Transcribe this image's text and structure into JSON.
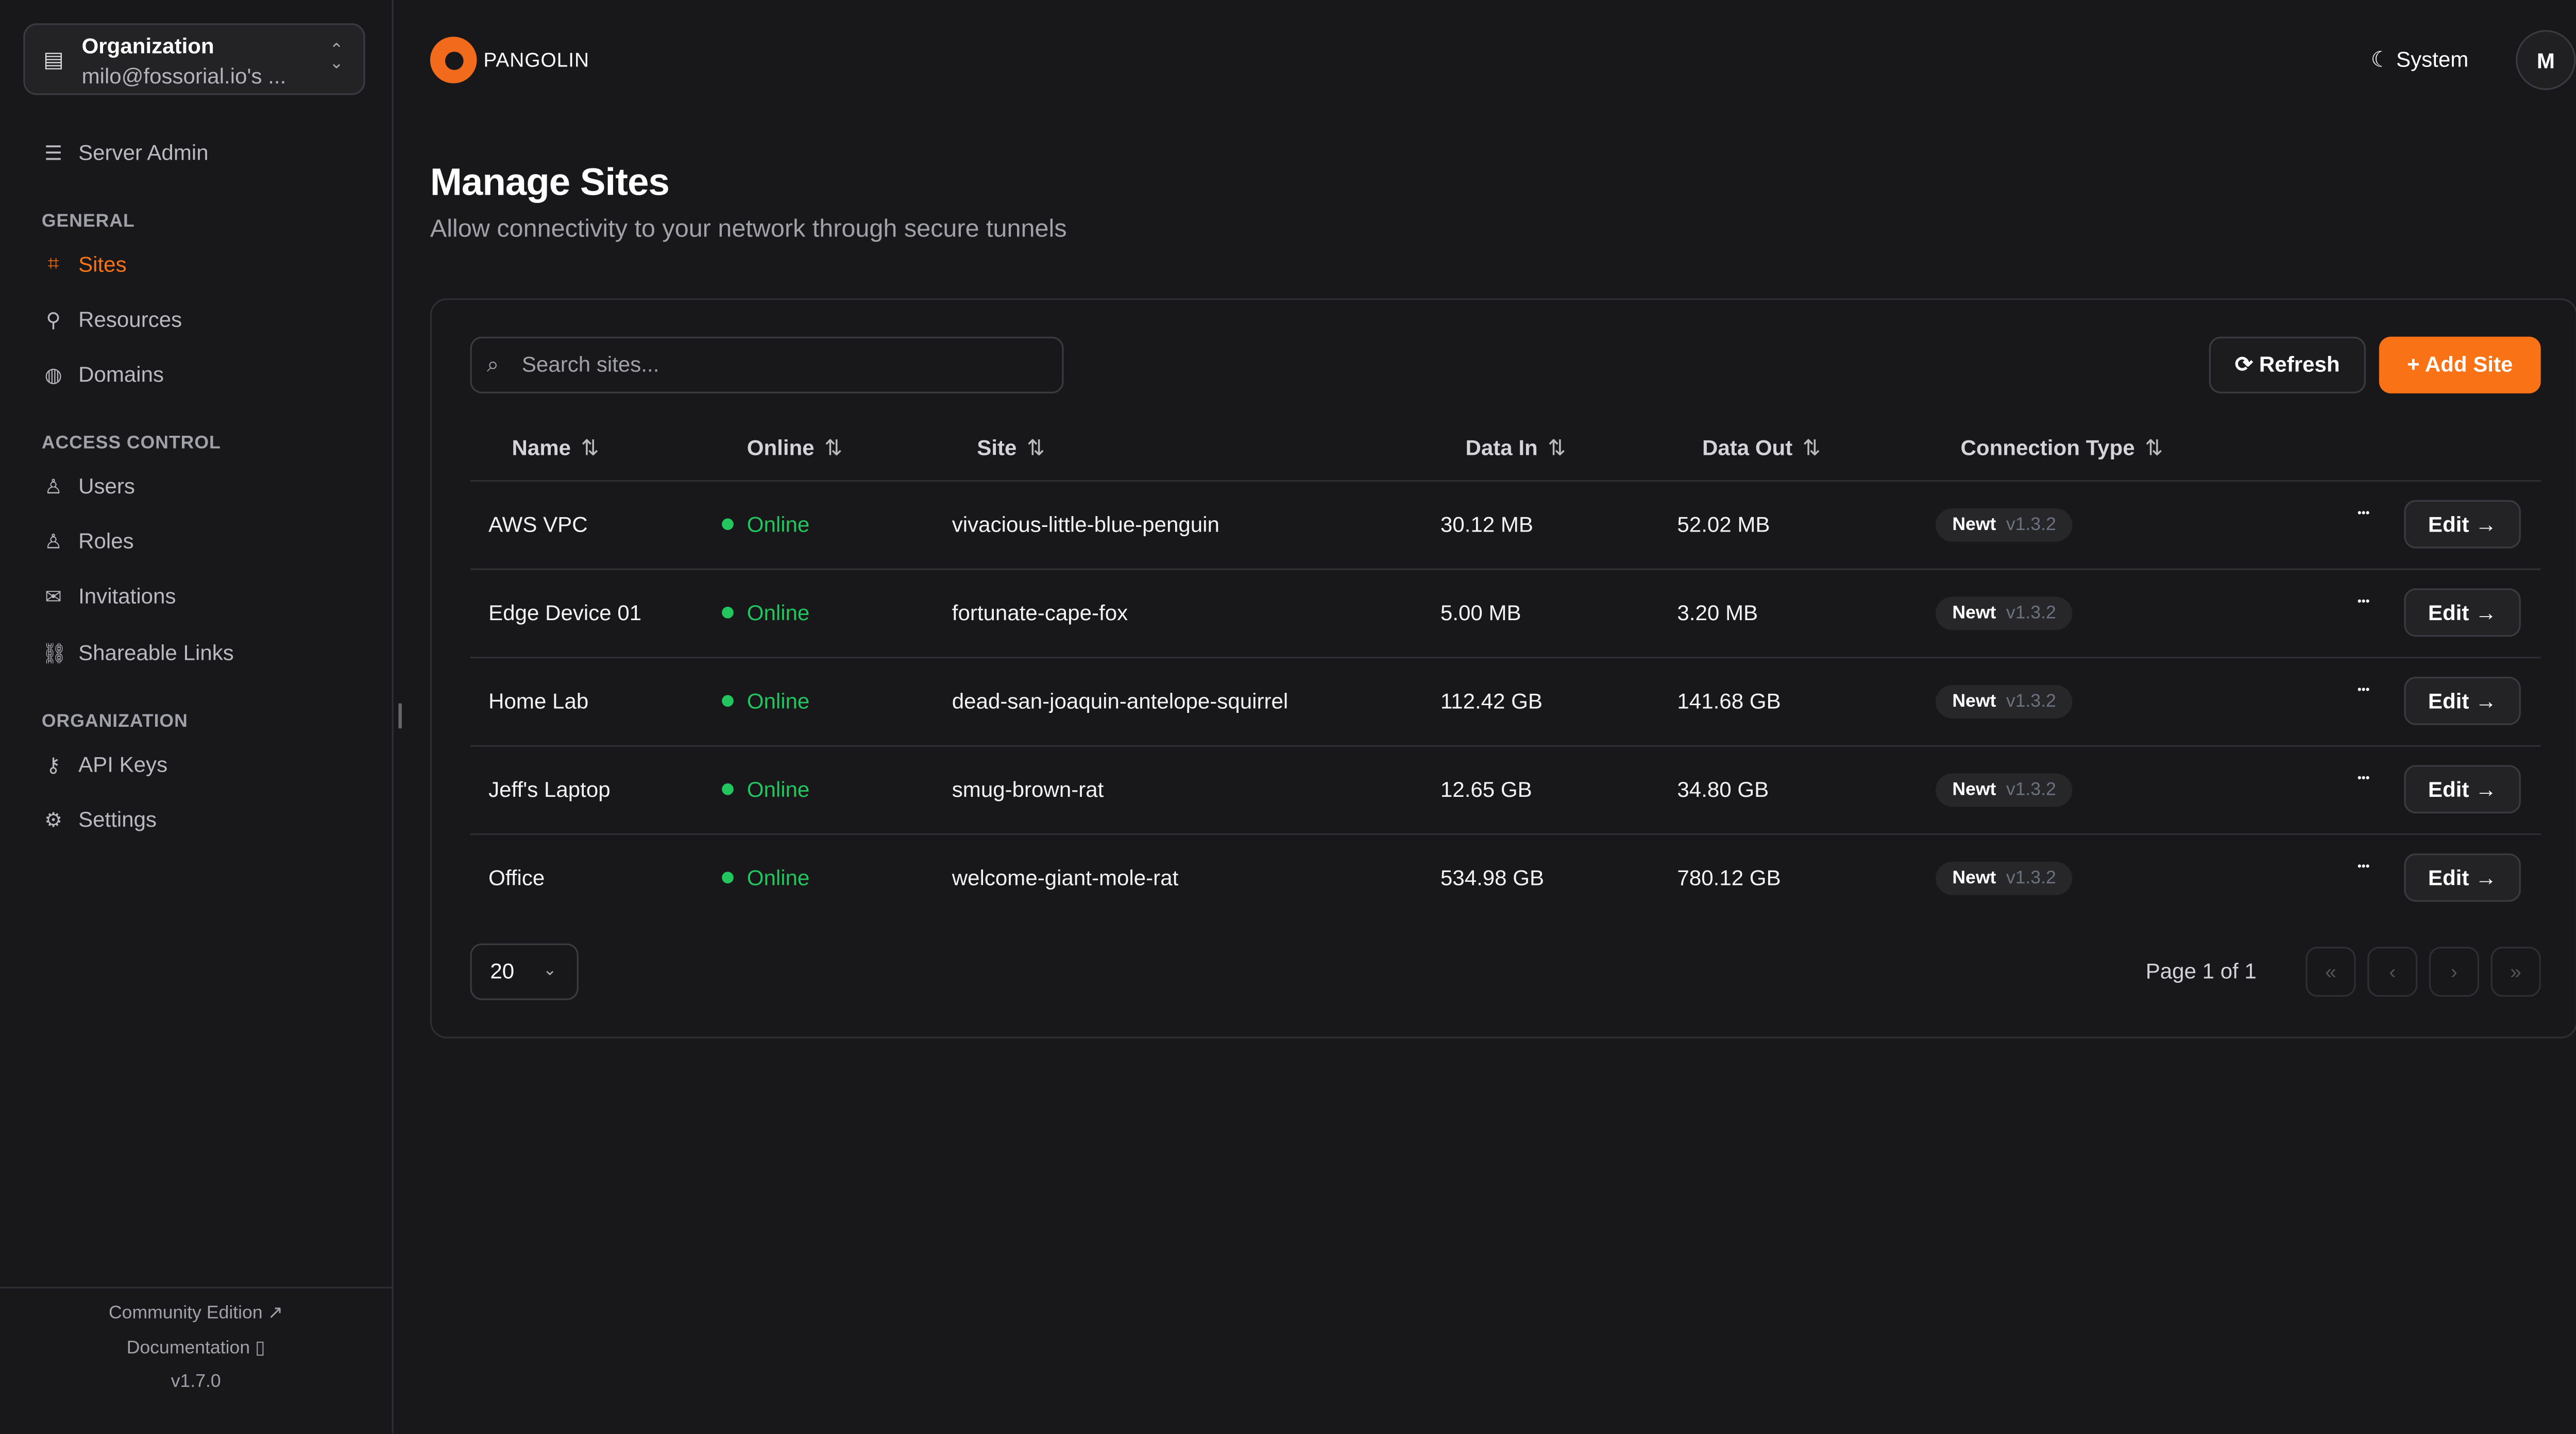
{
  "sidebar": {
    "org_label": "Organization",
    "org_name": "milo@fossorial.io's ...",
    "server_admin": "Server Admin",
    "sections": {
      "general": "GENERAL",
      "access": "ACCESS CONTROL",
      "organization": "ORGANIZATION"
    },
    "items": [
      {
        "label": "Sites",
        "icon": "sites-icon",
        "active": true
      },
      {
        "label": "Resources",
        "icon": "resources-icon"
      },
      {
        "label": "Domains",
        "icon": "globe-icon"
      },
      {
        "label": "Users",
        "icon": "user-icon"
      },
      {
        "label": "Roles",
        "icon": "users-icon"
      },
      {
        "label": "Invitations",
        "icon": "mail-icon"
      },
      {
        "label": "Shareable Links",
        "icon": "link-icon"
      },
      {
        "label": "API Keys",
        "icon": "key-icon"
      },
      {
        "label": "Settings",
        "icon": "gear-icon"
      }
    ],
    "footer": {
      "community": "Community Edition",
      "docs": "Documentation",
      "version": "v1.7.0"
    }
  },
  "header": {
    "brand": "PANGOLIN",
    "theme": "System",
    "avatar": "M"
  },
  "page": {
    "title": "Manage Sites",
    "subtitle": "Allow connectivity to your network through secure tunnels"
  },
  "toolbar": {
    "search_placeholder": "Search sites...",
    "refresh": "Refresh",
    "add": "Add Site"
  },
  "table": {
    "columns": [
      "Name",
      "Online",
      "Site",
      "Data In",
      "Data Out",
      "Connection Type"
    ],
    "rows": [
      {
        "name": "AWS VPC",
        "online": "Online",
        "site": "vivacious-little-blue-penguin",
        "in": "30.12 MB",
        "out": "52.02 MB",
        "type": "Newt",
        "ver": "v1.3.2",
        "edit": "Edit"
      },
      {
        "name": "Edge Device 01",
        "online": "Online",
        "site": "fortunate-cape-fox",
        "in": "5.00 MB",
        "out": "3.20 MB",
        "type": "Newt",
        "ver": "v1.3.2",
        "edit": "Edit"
      },
      {
        "name": "Home Lab",
        "online": "Online",
        "site": "dead-san-joaquin-antelope-squirrel",
        "in": "112.42 GB",
        "out": "141.68 GB",
        "type": "Newt",
        "ver": "v1.3.2",
        "edit": "Edit"
      },
      {
        "name": "Jeff's Laptop",
        "online": "Online",
        "site": "smug-brown-rat",
        "in": "12.65 GB",
        "out": "34.80 GB",
        "type": "Newt",
        "ver": "v1.3.2",
        "edit": "Edit"
      },
      {
        "name": "Office",
        "online": "Online",
        "site": "welcome-giant-mole-rat",
        "in": "534.98 GB",
        "out": "780.12 GB",
        "type": "Newt",
        "ver": "v1.3.2",
        "edit": "Edit"
      }
    ]
  },
  "pagination": {
    "page_size": "20",
    "info": "Page 1 of 1"
  },
  "colors": {
    "accent": "#f97316",
    "online": "#22c55e",
    "background": "#18181b"
  }
}
